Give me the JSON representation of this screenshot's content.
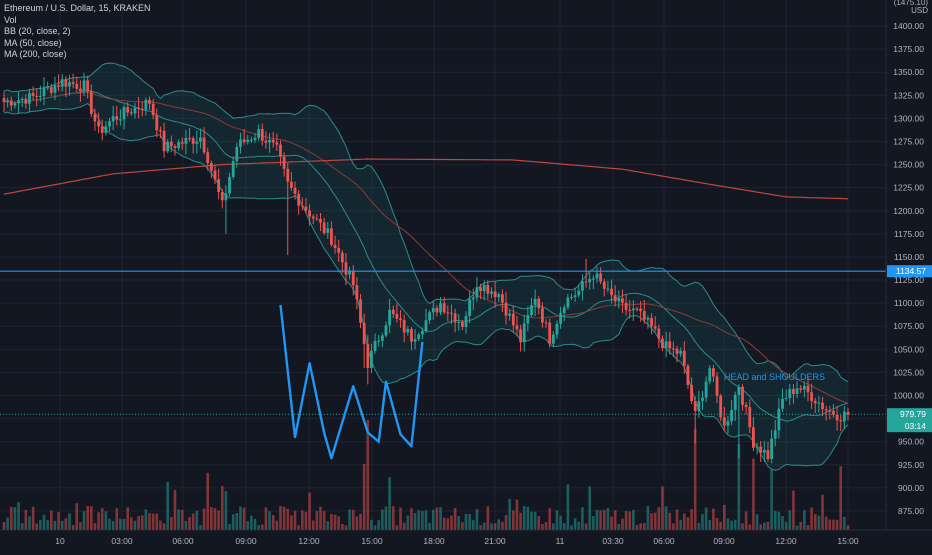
{
  "chart_data": {
    "type": "candlestick",
    "title": "Ethereum / U.S. Dollar, 15, KRAKEN",
    "indicators": [
      "Vol",
      "BB (20, close, 2)",
      "MA (50, close)",
      "MA (200, close)"
    ],
    "y_axis": {
      "currency_label": "USD",
      "top_partial_label": "(1475.10)",
      "ticks": [
        1400,
        1375,
        1350,
        1325,
        1300,
        1275,
        1250,
        1225,
        1200,
        1175,
        1150,
        1125,
        1100,
        1075,
        1050,
        1025,
        1000,
        975,
        950,
        925,
        900,
        875
      ],
      "tick_labels": [
        "1400.00",
        "1375.00",
        "1350.00",
        "1325.00",
        "1300.00",
        "1275.00",
        "1250.00",
        "1225.00",
        "1200.00",
        "1175.00",
        "1150.00",
        "1125.00",
        "1100.00",
        "1075.00",
        "1050.00",
        "1025.00",
        "1000.00",
        "975.00",
        "950.00",
        "925.00",
        "900.00",
        "875.00"
      ],
      "ylim": [
        860,
        1420
      ]
    },
    "x_axis": {
      "tick_labels": [
        "10",
        "03:00",
        "06:00",
        "09:00",
        "12:00",
        "15:00",
        "18:00",
        "21:00",
        "11",
        "03:30",
        "06:00",
        "09:00",
        "12:00",
        "15:00"
      ]
    },
    "horizontal_line": {
      "value": 1134.57,
      "label": "1134.57",
      "color": "#2196f3"
    },
    "last_price": {
      "value": 979.79,
      "label": "979.79",
      "countdown": "03:14",
      "color": "#26a69a"
    },
    "annotation": {
      "text": "HEAD and SHOULDERS",
      "color": "#2196f3"
    },
    "pattern_points": [
      [
        76,
        1098
      ],
      [
        80,
        955
      ],
      [
        84,
        1035
      ],
      [
        88,
        960
      ],
      [
        90,
        932
      ],
      [
        96,
        1010
      ],
      [
        100,
        960
      ],
      [
        103,
        950
      ],
      [
        105,
        1015
      ],
      [
        109,
        958
      ],
      [
        112,
        945
      ],
      [
        115,
        1058
      ]
    ],
    "price_anchors": [
      [
        0,
        1318
      ],
      [
        8,
        1323
      ],
      [
        16,
        1340
      ],
      [
        22,
        1335
      ],
      [
        26,
        1285
      ],
      [
        30,
        1300
      ],
      [
        40,
        1318
      ],
      [
        44,
        1268
      ],
      [
        54,
        1280
      ],
      [
        56,
        1258
      ],
      [
        60,
        1205
      ],
      [
        64,
        1270
      ],
      [
        70,
        1285
      ],
      [
        75,
        1265
      ],
      [
        78,
        1228
      ],
      [
        82,
        1207
      ],
      [
        90,
        1170
      ],
      [
        96,
        1120
      ],
      [
        100,
        1035
      ],
      [
        106,
        1090
      ],
      [
        112,
        1063
      ],
      [
        118,
        1090
      ],
      [
        120,
        1100
      ],
      [
        126,
        1078
      ],
      [
        130,
        1122
      ],
      [
        136,
        1110
      ],
      [
        142,
        1060
      ],
      [
        146,
        1108
      ],
      [
        150,
        1062
      ],
      [
        154,
        1102
      ],
      [
        158,
        1113
      ],
      [
        162,
        1132
      ],
      [
        166,
        1110
      ],
      [
        170,
        1095
      ],
      [
        174,
        1090
      ],
      [
        178,
        1073
      ],
      [
        182,
        1052
      ],
      [
        186,
        1045
      ],
      [
        190,
        978
      ],
      [
        194,
        1030
      ],
      [
        198,
        965
      ],
      [
        202,
        1012
      ],
      [
        206,
        950
      ],
      [
        210,
        935
      ],
      [
        214,
        995
      ],
      [
        218,
        1010
      ],
      [
        222,
        1000
      ],
      [
        226,
        985
      ],
      [
        230,
        978
      ],
      [
        232,
        980
      ]
    ],
    "ma200_anchors": [
      [
        0,
        1218
      ],
      [
        30,
        1240
      ],
      [
        60,
        1250
      ],
      [
        100,
        1256
      ],
      [
        140,
        1255
      ],
      [
        170,
        1245
      ],
      [
        195,
        1228
      ],
      [
        215,
        1215
      ],
      [
        232,
        1213
      ]
    ],
    "volume_max": 100,
    "up_color": "#26a69a",
    "down_color": "#ef5350",
    "ma50_color": "#8b3c33",
    "ma200_color": "#c0463e",
    "bb_color": "#2c8b8a"
  }
}
